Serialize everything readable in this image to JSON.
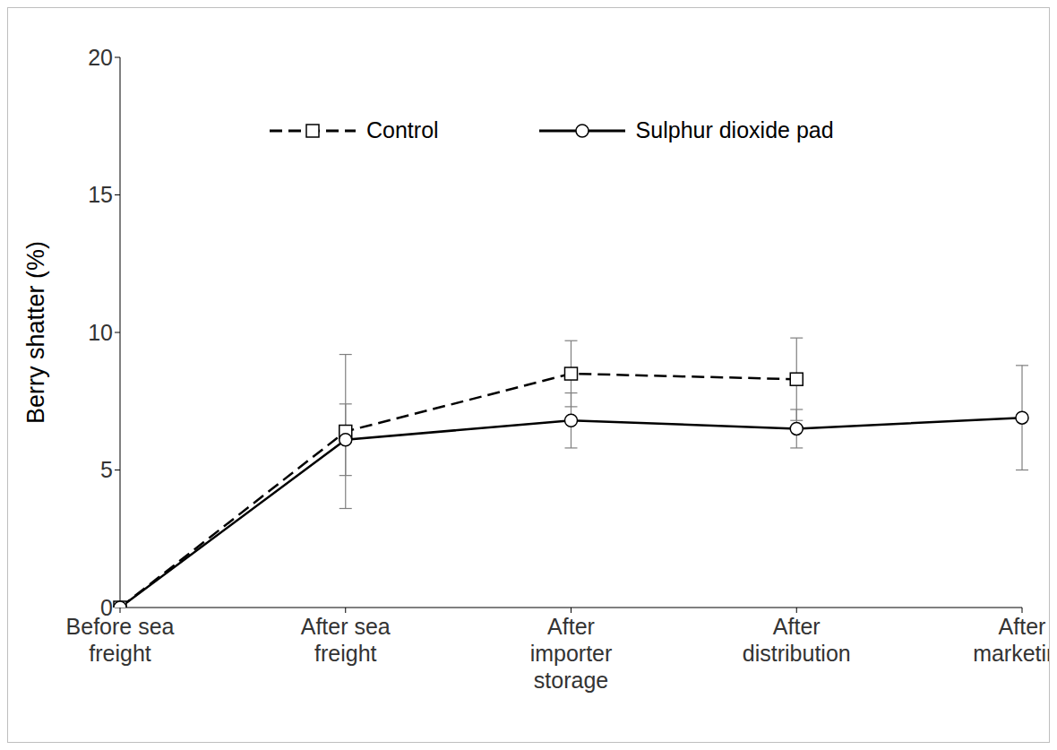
{
  "chart_data": {
    "type": "line",
    "y_label": "Berry shatter (%)",
    "categories": [
      "Before sea freight",
      "After sea freight",
      "After importer storage",
      "After distribution",
      "After marketing"
    ],
    "series": [
      {
        "name": "Control",
        "color": "#000000",
        "line_style": "dashed",
        "marker": "square",
        "values": [
          0,
          6.4,
          8.5,
          8.3,
          null
        ],
        "errors": [
          0,
          2.8,
          1.2,
          1.5,
          null
        ]
      },
      {
        "name": "Sulphur dioxide pad",
        "color": "#000000",
        "line_style": "solid",
        "marker": "circle",
        "values": [
          0,
          6.1,
          6.8,
          6.5,
          6.9
        ],
        "errors": [
          0,
          1.3,
          1.0,
          0.7,
          1.9
        ]
      }
    ],
    "ylim": [
      0,
      20
    ],
    "yticks": [
      0,
      5,
      10,
      15,
      20
    ],
    "grid": false,
    "legend": "top"
  }
}
